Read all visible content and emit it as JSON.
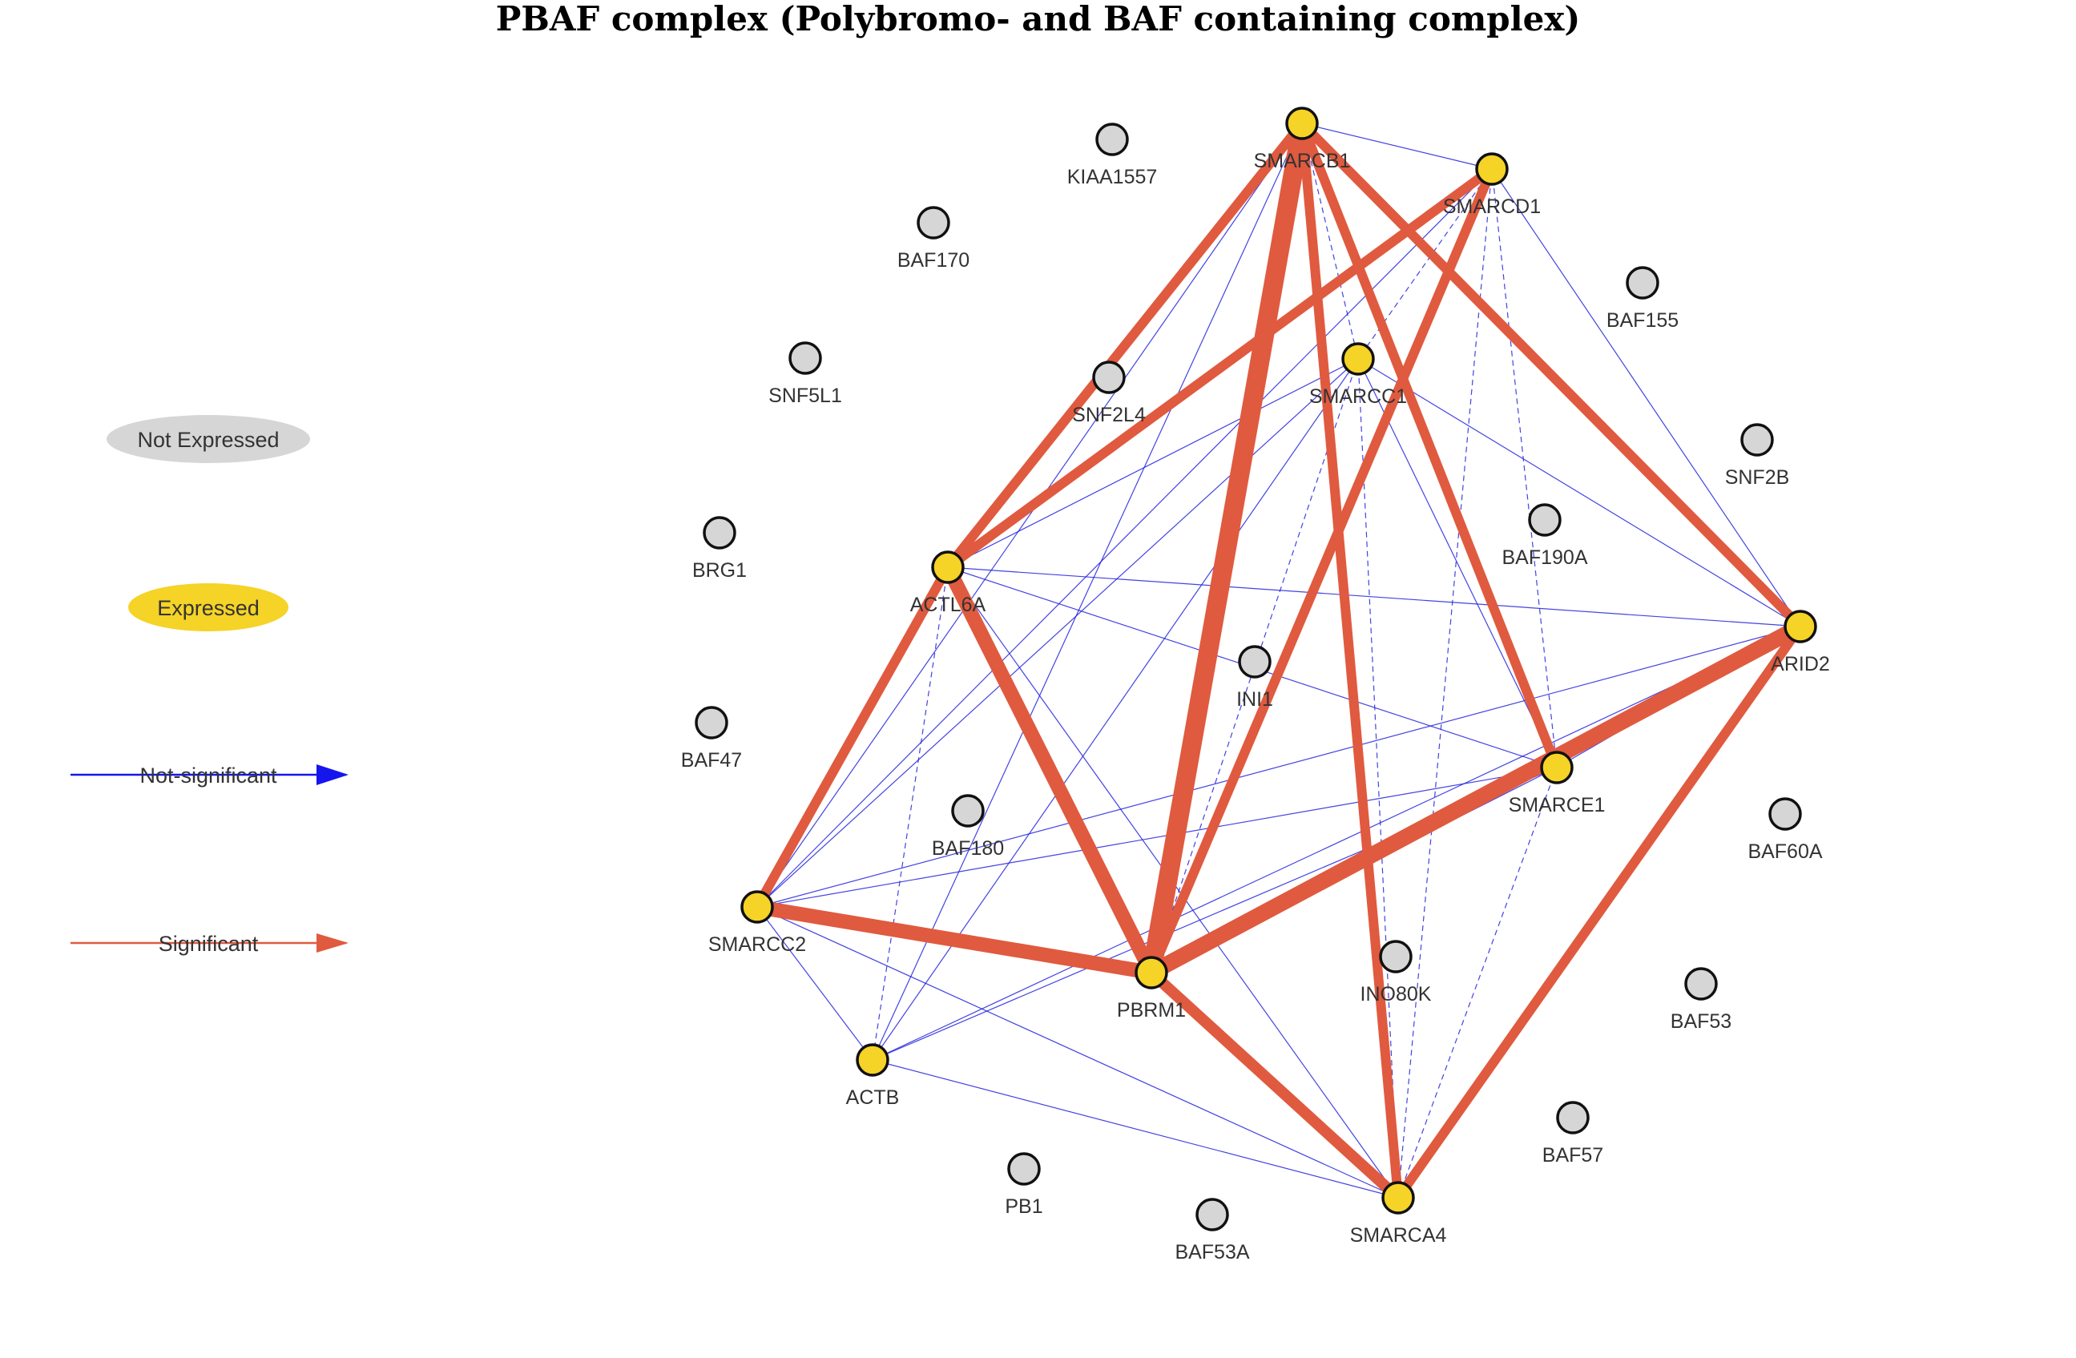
{
  "title": "PBAF complex (Polybromo- and BAF containing complex)",
  "legend": {
    "not_expressed": "Not Expressed",
    "expressed": "Expressed",
    "not_significant": "Not-significant",
    "significant": "Significant"
  },
  "colors": {
    "expressed_fill": "#f5d327",
    "not_expressed_fill": "#d6d6d6",
    "significant_edge": "#e05a3f",
    "not_significant_edge": "#2222dd"
  },
  "nodes": [
    {
      "id": "SMARCB1",
      "label": "SMARCB1",
      "expressed": true
    },
    {
      "id": "SMARCD1",
      "label": "SMARCD1",
      "expressed": true
    },
    {
      "id": "SMARCC1",
      "label": "SMARCC1",
      "expressed": true
    },
    {
      "id": "ACTL6A",
      "label": "ACTL6A",
      "expressed": true
    },
    {
      "id": "ARID2",
      "label": "ARID2",
      "expressed": true
    },
    {
      "id": "SMARCE1",
      "label": "SMARCE1",
      "expressed": true
    },
    {
      "id": "SMARCC2",
      "label": "SMARCC2",
      "expressed": true
    },
    {
      "id": "PBRM1",
      "label": "PBRM1",
      "expressed": true
    },
    {
      "id": "ACTB",
      "label": "ACTB",
      "expressed": true
    },
    {
      "id": "SMARCA4",
      "label": "SMARCA4",
      "expressed": true
    },
    {
      "id": "KIAA1557",
      "label": "KIAA1557",
      "expressed": false
    },
    {
      "id": "BAF170",
      "label": "BAF170",
      "expressed": false
    },
    {
      "id": "BAF155",
      "label": "BAF155",
      "expressed": false
    },
    {
      "id": "SNF5L1",
      "label": "SNF5L1",
      "expressed": false
    },
    {
      "id": "SNF2L4",
      "label": "SNF2L4",
      "expressed": false
    },
    {
      "id": "SNF2B",
      "label": "SNF2B",
      "expressed": false
    },
    {
      "id": "BRG1",
      "label": "BRG1",
      "expressed": false
    },
    {
      "id": "BAF190A",
      "label": "BAF190A",
      "expressed": false
    },
    {
      "id": "INI1",
      "label": "INI1",
      "expressed": false
    },
    {
      "id": "BAF47",
      "label": "BAF47",
      "expressed": false
    },
    {
      "id": "BAF180",
      "label": "BAF180",
      "expressed": false
    },
    {
      "id": "BAF60A",
      "label": "BAF60A",
      "expressed": false
    },
    {
      "id": "INO80K",
      "label": "INO80K",
      "expressed": false
    },
    {
      "id": "BAF53",
      "label": "BAF53",
      "expressed": false
    },
    {
      "id": "BAF57",
      "label": "BAF57",
      "expressed": false
    },
    {
      "id": "PB1",
      "label": "PB1",
      "expressed": false
    },
    {
      "id": "BAF53A",
      "label": "BAF53A",
      "expressed": false
    }
  ],
  "significant_edges": [
    {
      "source": "SMARCB1",
      "target": "PBRM1",
      "weight": 5
    },
    {
      "source": "PBRM1",
      "target": "ARID2",
      "weight": 4
    },
    {
      "source": "SMARCC2",
      "target": "PBRM1",
      "weight": 3.5
    },
    {
      "source": "ACTL6A",
      "target": "PBRM1",
      "weight": 3.5
    },
    {
      "source": "PBRM1",
      "target": "SMARCA4",
      "weight": 2.5
    },
    {
      "source": "SMARCB1",
      "target": "SMARCA4",
      "weight": 2
    },
    {
      "source": "SMARCB1",
      "target": "ACTL6A",
      "weight": 2
    },
    {
      "source": "SMARCB1",
      "target": "ARID2",
      "weight": 2
    },
    {
      "source": "SMARCB1",
      "target": "SMARCE1",
      "weight": 2
    },
    {
      "source": "SMARCD1",
      "target": "PBRM1",
      "weight": 2
    },
    {
      "source": "SMARCD1",
      "target": "ACTL6A",
      "weight": 2
    },
    {
      "source": "ARID2",
      "target": "SMARCA4",
      "weight": 2
    },
    {
      "source": "SMARCC2",
      "target": "ACTL6A",
      "weight": 2
    }
  ],
  "not_significant_edges": [
    {
      "source": "SMARCB1",
      "target": "SMARCD1",
      "dashed": false
    },
    {
      "source": "SMARCB1",
      "target": "SMARCC1",
      "dashed": true
    },
    {
      "source": "SMARCB1",
      "target": "SMARCC2",
      "dashed": false
    },
    {
      "source": "SMARCB1",
      "target": "ACTB",
      "dashed": false
    },
    {
      "source": "SMARCD1",
      "target": "SMARCE1",
      "dashed": true
    },
    {
      "source": "SMARCD1",
      "target": "ARID2",
      "dashed": false
    },
    {
      "source": "SMARCD1",
      "target": "SMARCC2",
      "dashed": false
    },
    {
      "source": "SMARCD1",
      "target": "SMARCC1",
      "dashed": true
    },
    {
      "source": "SMARCD1",
      "target": "SMARCA4",
      "dashed": true
    },
    {
      "source": "SMARCC1",
      "target": "ACTL6A",
      "dashed": false
    },
    {
      "source": "SMARCC1",
      "target": "PBRM1",
      "dashed": true
    },
    {
      "source": "SMARCC1",
      "target": "SMARCE1",
      "dashed": false
    },
    {
      "source": "SMARCC1",
      "target": "SMARCA4",
      "dashed": true
    },
    {
      "source": "SMARCC1",
      "target": "ACTB",
      "dashed": false
    },
    {
      "source": "SMARCC1",
      "target": "SMARCC2",
      "dashed": false
    },
    {
      "source": "SMARCC1",
      "target": "ARID2",
      "dashed": false
    },
    {
      "source": "ACTL6A",
      "target": "ARID2",
      "dashed": false
    },
    {
      "source": "ACTL6A",
      "target": "SMARCE1",
      "dashed": false
    },
    {
      "source": "ACTL6A",
      "target": "ACTB",
      "dashed": true
    },
    {
      "source": "ACTL6A",
      "target": "SMARCA4",
      "dashed": false
    },
    {
      "source": "SMARCC2",
      "target": "ARID2",
      "dashed": false
    },
    {
      "source": "SMARCC2",
      "target": "SMARCE1",
      "dashed": false
    },
    {
      "source": "SMARCC2",
      "target": "ACTB",
      "dashed": false
    },
    {
      "source": "SMARCC2",
      "target": "SMARCA4",
      "dashed": false
    },
    {
      "source": "ACTB",
      "target": "ARID2",
      "dashed": false
    },
    {
      "source": "ACTB",
      "target": "SMARCE1",
      "dashed": false
    },
    {
      "source": "ACTB",
      "target": "SMARCA4",
      "dashed": false
    },
    {
      "source": "SMARCE1",
      "target": "SMARCA4",
      "dashed": true
    },
    {
      "source": "SMARCE1",
      "target": "ARID2",
      "dashed": false
    },
    {
      "source": "PBRM1",
      "target": "SMARCE1",
      "dashed": false
    }
  ]
}
